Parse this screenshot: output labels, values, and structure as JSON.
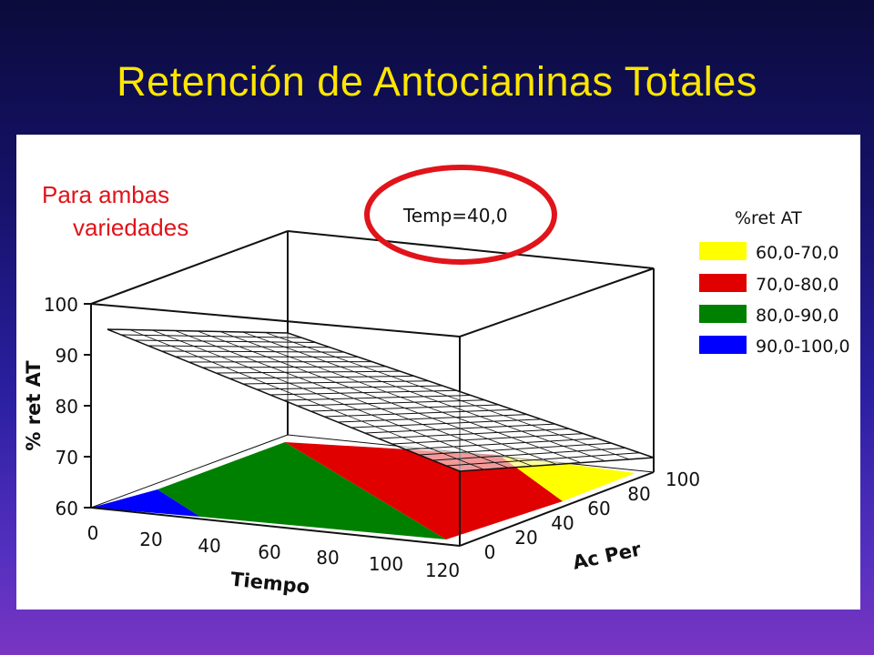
{
  "slide": {
    "title": "Retención de Antocianinas Totales",
    "note_line1": "Para ambas",
    "note_line2": "variedades"
  },
  "chart_data": {
    "type": "surface",
    "fixed_factor": "Temp=40,0",
    "zlabel": "% ret AT",
    "xlabel": "Tiempo",
    "ylabel": "Ac Per",
    "x_ticks": [
      "0",
      "20",
      "40",
      "60",
      "80",
      "100",
      "120"
    ],
    "y_ticks": [
      "0",
      "20",
      "40",
      "60",
      "80",
      "100"
    ],
    "z_ticks": [
      "60",
      "70",
      "80",
      "90",
      "100"
    ],
    "xlim": [
      0,
      120
    ],
    "ylim": [
      0,
      100
    ],
    "zlim": [
      60,
      100
    ],
    "legend": {
      "title": "%ret AT",
      "position": "right",
      "entries": [
        {
          "label": "60,0-70,0",
          "color": "#ffff00"
        },
        {
          "label": "70,0-80,0",
          "color": "#e00000"
        },
        {
          "label": "80,0-90,0",
          "color": "#008000"
        },
        {
          "label": "90,0-100,0",
          "color": "#0000ff"
        }
      ]
    },
    "contour_floor": true,
    "highlight_color": "#e0141a"
  }
}
